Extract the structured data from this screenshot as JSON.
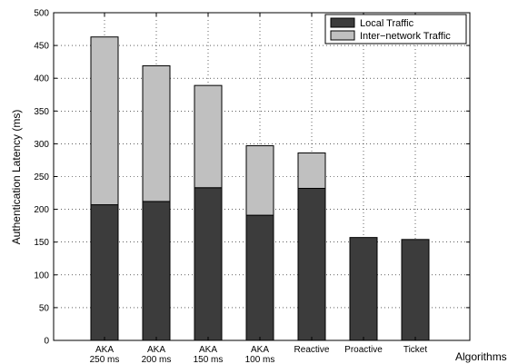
{
  "chart_data": {
    "type": "bar",
    "stacked": true,
    "categories": [
      [
        "AKA",
        "250 ms"
      ],
      [
        "AKA",
        "200 ms"
      ],
      [
        "AKA",
        "150 ms"
      ],
      [
        "AKA",
        "100 ms"
      ],
      [
        "Reactive"
      ],
      [
        "Proactive"
      ],
      [
        "Ticket"
      ]
    ],
    "series": [
      {
        "name": "Local Traffic",
        "color": "#3c3c3c",
        "values": [
          207,
          212,
          233,
          191,
          232,
          157,
          154
        ]
      },
      {
        "name": "Inter−network Traffic",
        "color": "#c0c0c0",
        "values": [
          256,
          207,
          156,
          106,
          54,
          0,
          0
        ]
      }
    ],
    "xlabel": "Algorithms",
    "ylabel": "Authentication Latency (ms)",
    "ylim": [
      0,
      500
    ],
    "yticks": [
      0,
      50,
      100,
      150,
      200,
      250,
      300,
      350,
      400,
      450,
      500
    ],
    "grid": true,
    "legend_position": "top-right"
  }
}
